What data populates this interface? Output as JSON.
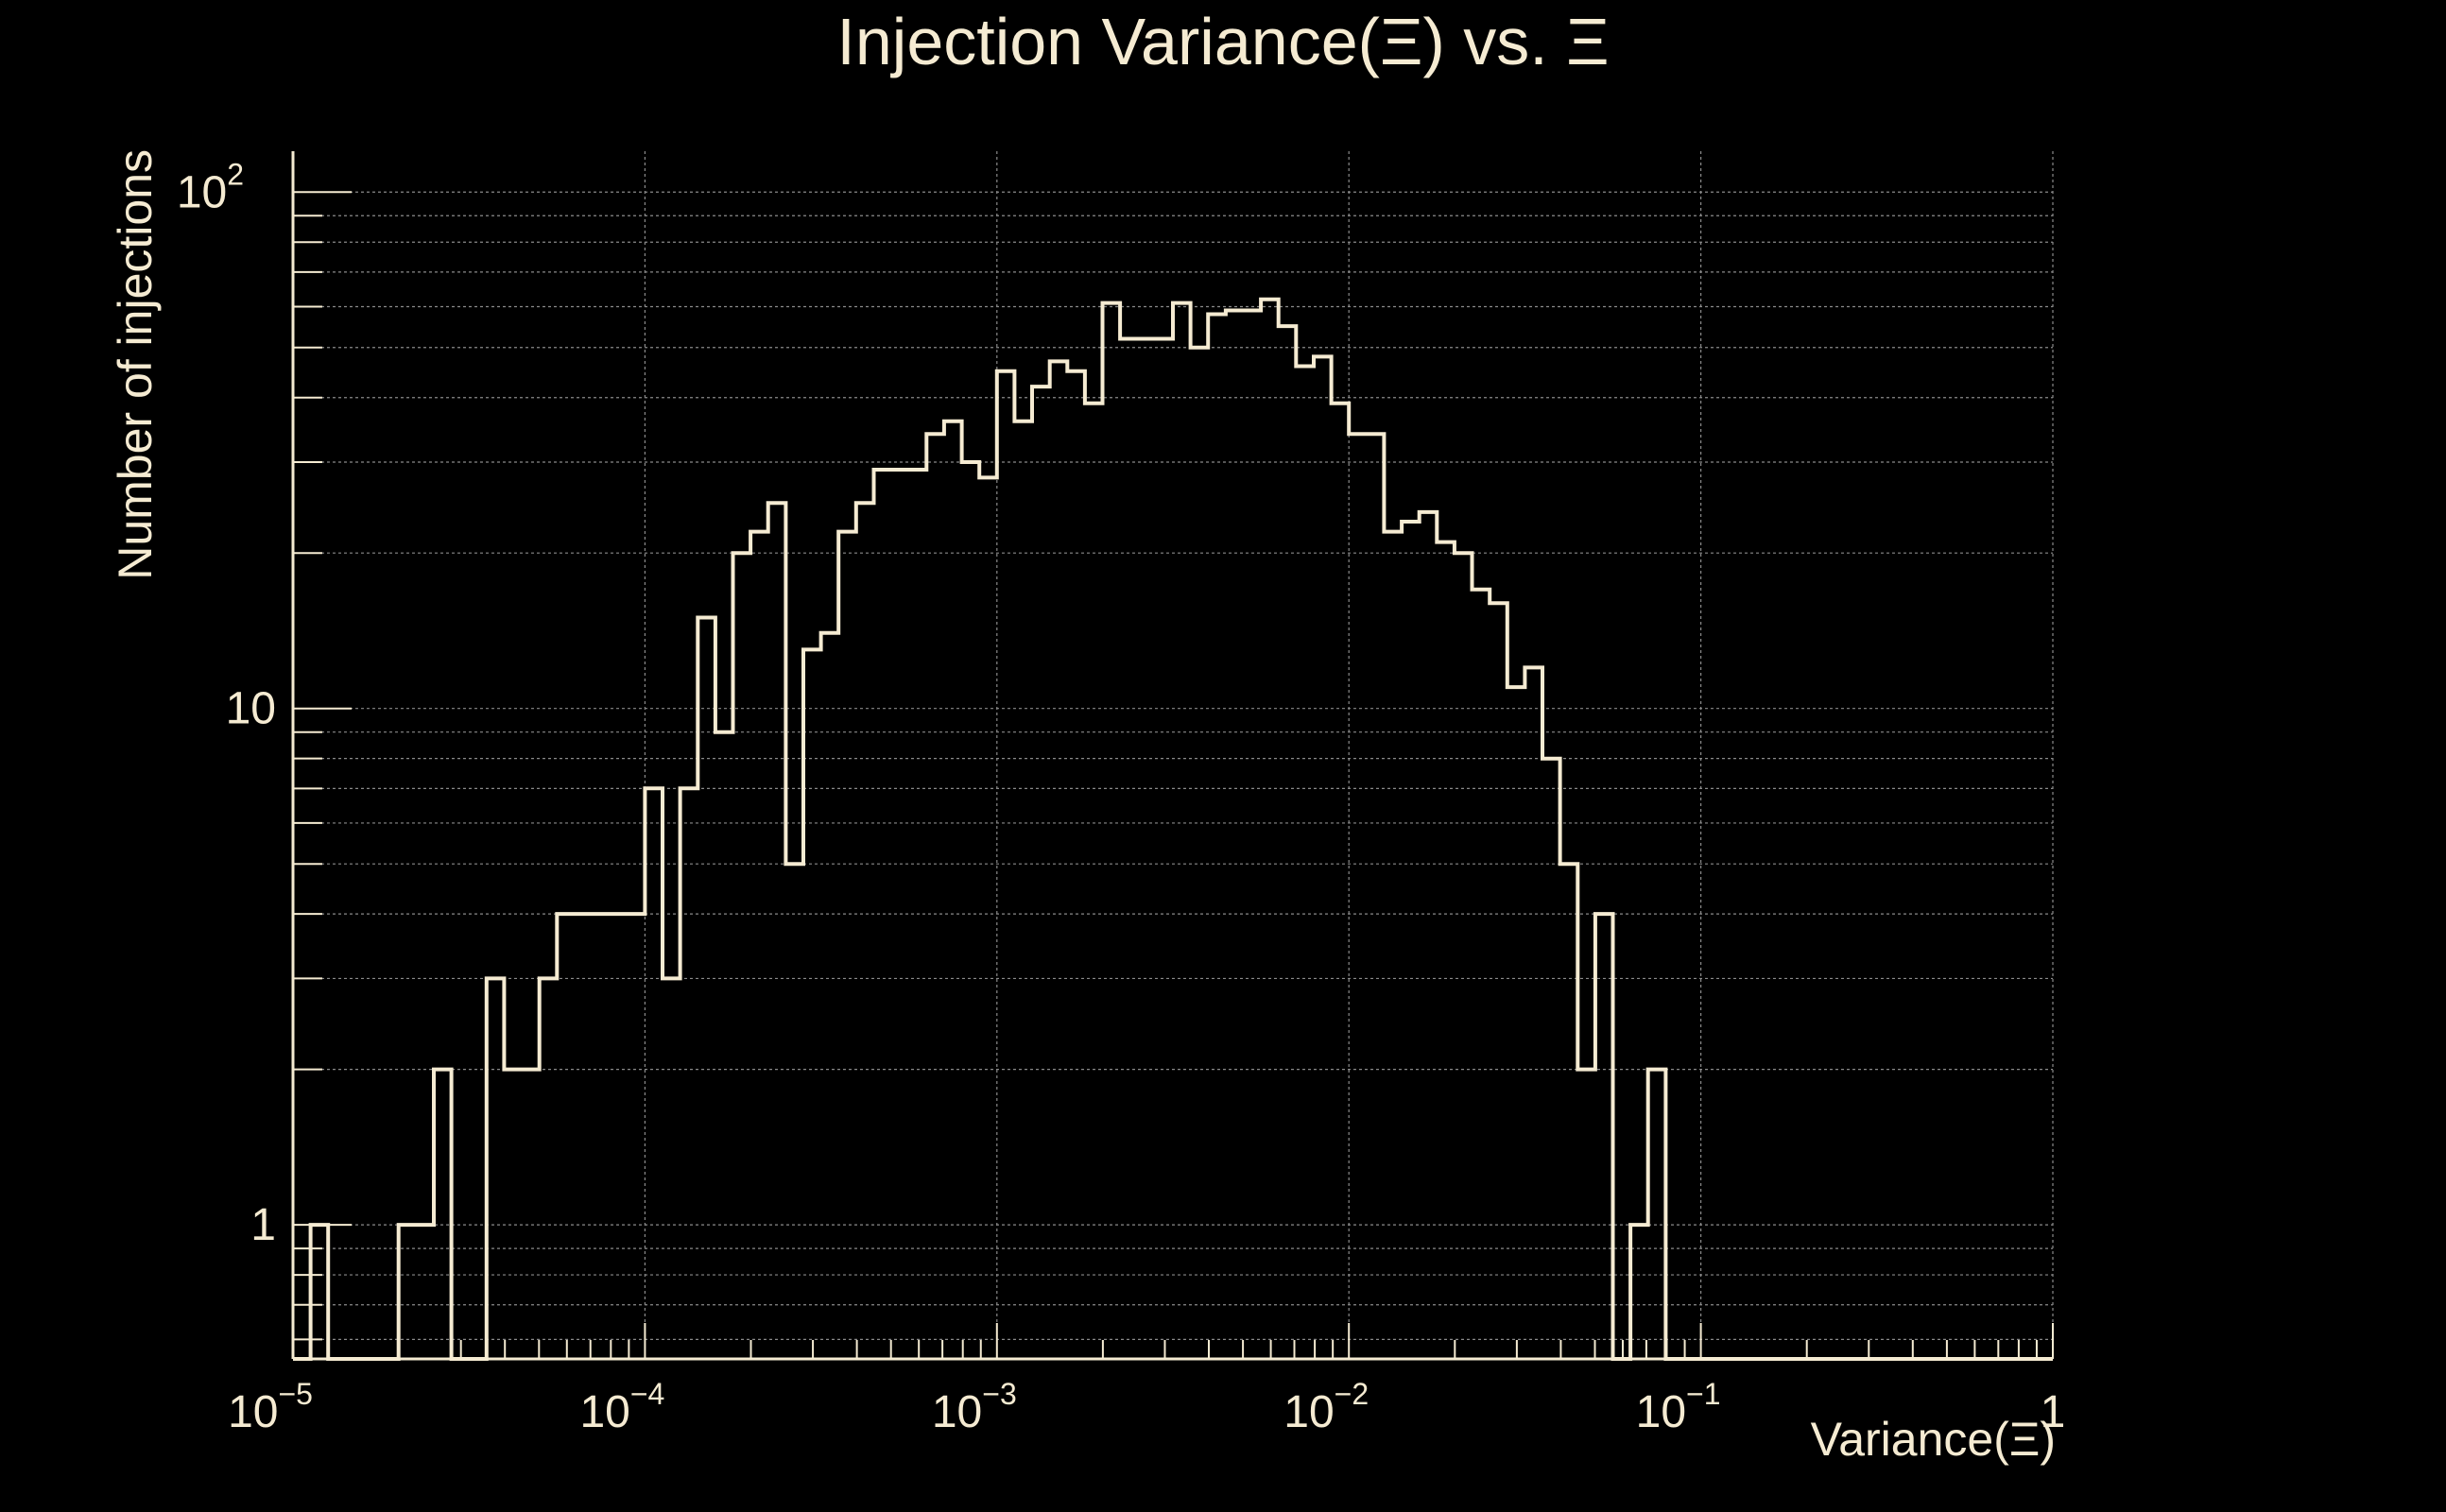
{
  "colors": {
    "background": "#000000",
    "foreground": "#f5ebd2",
    "grid": "#8a8a8a"
  },
  "chart_data": {
    "type": "histogram",
    "title": "Injection Variance(Ξ) vs. Ξ",
    "xlabel": "Variance(Ξ)",
    "ylabel": "Number of injections",
    "x_scale": "log",
    "y_scale": "log",
    "xlim": [
      1e-05,
      1
    ],
    "ylim": [
      0.55,
      120
    ],
    "grid": true,
    "legend": "none",
    "x_ticks": [
      {
        "value": 1e-05,
        "base": "10",
        "exp": "−5"
      },
      {
        "value": 0.0001,
        "base": "10",
        "exp": "−4"
      },
      {
        "value": 0.001,
        "base": "10",
        "exp": "−3"
      },
      {
        "value": 0.01,
        "base": "10",
        "exp": "−2"
      },
      {
        "value": 0.1,
        "base": "10",
        "exp": "−1"
      },
      {
        "value": 1,
        "base": "1",
        "exp": ""
      }
    ],
    "y_ticks": [
      {
        "value": 1,
        "base": "1",
        "exp": ""
      },
      {
        "value": 10,
        "base": "10",
        "exp": ""
      },
      {
        "value": 100,
        "base": "10",
        "exp": "2"
      }
    ],
    "bins_per_decade": 20,
    "bin_start": 1e-05,
    "counts": [
      0,
      1,
      0,
      0,
      0,
      0,
      1,
      1,
      2,
      0,
      0,
      3,
      2,
      2,
      3,
      4,
      4,
      4,
      4,
      4,
      7,
      3,
      7,
      15,
      9,
      20,
      22,
      25,
      5,
      13,
      14,
      22,
      25,
      29,
      29,
      29,
      34,
      36,
      30,
      28,
      45,
      36,
      42,
      47,
      45,
      39,
      61,
      52,
      52,
      52,
      61,
      50,
      58,
      59,
      59,
      62,
      55,
      46,
      48,
      39,
      34,
      34,
      22,
      23,
      24,
      21,
      20,
      17,
      16,
      11,
      12,
      8,
      5,
      2,
      4,
      0,
      1,
      2,
      0,
      0,
      0,
      0,
      0,
      0,
      0,
      0,
      0,
      0,
      0,
      0,
      0,
      0,
      0,
      0,
      0,
      0,
      0,
      0,
      0,
      0
    ]
  }
}
